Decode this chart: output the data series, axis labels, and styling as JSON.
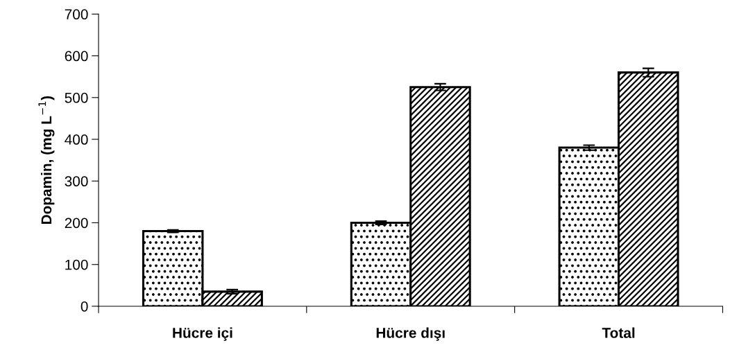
{
  "chart_data": {
    "type": "bar",
    "ylabel": "Dopamin, (mg L$^{−1}$)",
    "categories": [
      "Hücre içi",
      "Hücre dışı",
      "Total"
    ],
    "series": [
      {
        "color": "#000000",
        "values": [
          180,
          200,
          380
        ],
        "errors": [
          3,
          4,
          6
        ]
      },
      {
        "color": "#000000",
        "values": [
          35,
          525,
          560
        ],
        "errors": [
          5,
          8,
          10
        ]
      }
    ],
    "ylim": [
      0,
      700
    ],
    "yticks": [
      0,
      100,
      200,
      300,
      400,
      500,
      600,
      700
    ],
    "grid": false,
    "legend": false
  }
}
